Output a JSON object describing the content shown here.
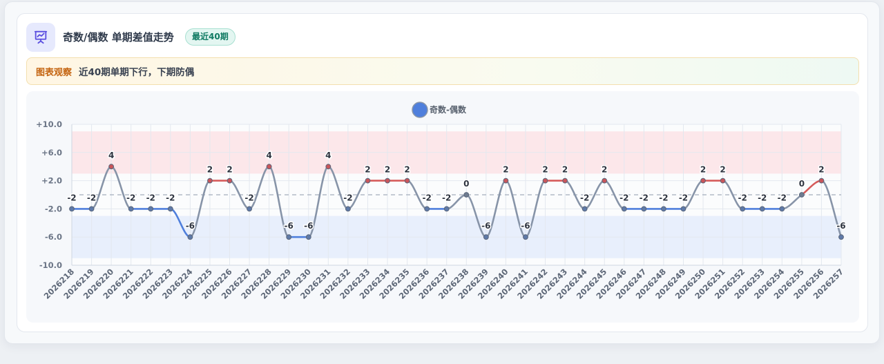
{
  "header": {
    "title": "奇数/偶数 单期差值走势",
    "badge": "最近40期",
    "icon": "presentation-chart-icon"
  },
  "insight": {
    "label": "图表观察",
    "text": "近40期单期下行，下期防偶"
  },
  "colors": {
    "up": "#d65a5a",
    "down": "#4f7fdc",
    "flat": "#8794a8",
    "legend_dot": "#4f7fdc",
    "band_high": "#fbe3e6",
    "band_low": "#e4ecfb"
  },
  "chart_data": {
    "type": "line",
    "legend": [
      "奇数-偶数"
    ],
    "legend_position": "top-center",
    "ylim": [
      -10,
      10
    ],
    "yticks": [
      10,
      6,
      2,
      -2,
      -6,
      -10
    ],
    "ytick_labels": [
      "+10.0",
      "+6.0",
      "+2.0",
      "-2.0",
      "-6.0",
      "-10.0"
    ],
    "reference_line": 0,
    "bands": [
      {
        "name": "high",
        "from": 3,
        "to": 9
      },
      {
        "name": "low",
        "from": -3,
        "to": -9
      }
    ],
    "grid": true,
    "x": [
      "2026218",
      "2026219",
      "2026220",
      "2026221",
      "2026222",
      "2026223",
      "2026224",
      "2026225",
      "2026226",
      "2026227",
      "2026228",
      "2026229",
      "2026230",
      "2026231",
      "2026232",
      "2026233",
      "2026234",
      "2026235",
      "2026236",
      "2026237",
      "2026238",
      "2026239",
      "2026240",
      "2026241",
      "2026242",
      "2026243",
      "2026244",
      "2026245",
      "2026246",
      "2026247",
      "2026248",
      "2026249",
      "2026250",
      "2026251",
      "2026252",
      "2026253",
      "2026254",
      "2026255",
      "2026256",
      "2026257"
    ],
    "series": [
      {
        "name": "奇数-偶数",
        "values": [
          -2,
          -2,
          4,
          -2,
          -2,
          -2,
          -6,
          2,
          2,
          -2,
          4,
          -6,
          -6,
          4,
          -2,
          2,
          2,
          2,
          -2,
          -2,
          0,
          -6,
          2,
          -6,
          2,
          2,
          -2,
          2,
          -2,
          -2,
          -2,
          -2,
          2,
          2,
          -2,
          -2,
          -2,
          0,
          2,
          -6
        ]
      }
    ]
  }
}
